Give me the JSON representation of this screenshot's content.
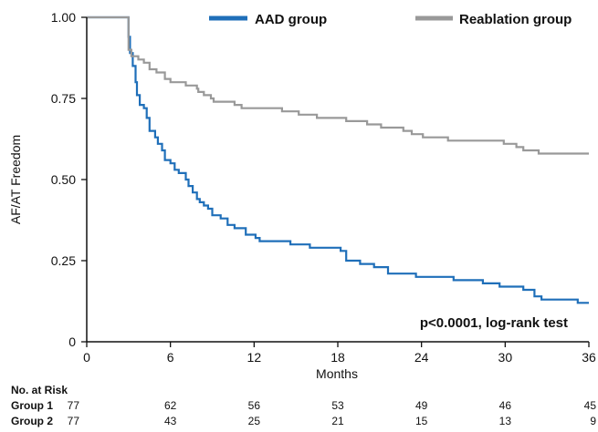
{
  "chart_data": {
    "type": "line",
    "subtype": "kaplan-meier",
    "title": "",
    "xlabel": "Months",
    "ylabel": "AF/AT Freedom",
    "xlim": [
      0,
      36
    ],
    "ylim": [
      0,
      1
    ],
    "xticks": [
      0,
      6,
      12,
      18,
      24,
      30,
      36
    ],
    "yticks": [
      "0",
      "0.25",
      "0.50",
      "0.75",
      "1.00"
    ],
    "yticks_values": [
      0,
      0.25,
      0.5,
      0.75,
      1.0
    ],
    "grid": false,
    "legend_position": "top",
    "annotation": "p<0.0001, log-rank test",
    "series": [
      {
        "name": "AAD group",
        "color": "#1f6fb9",
        "points": [
          [
            0,
            1.0
          ],
          [
            3.0,
            1.0
          ],
          [
            3.0,
            0.94
          ],
          [
            3.1,
            0.89
          ],
          [
            3.3,
            0.85
          ],
          [
            3.5,
            0.8
          ],
          [
            3.6,
            0.76
          ],
          [
            3.8,
            0.73
          ],
          [
            4.1,
            0.72
          ],
          [
            4.3,
            0.69
          ],
          [
            4.5,
            0.65
          ],
          [
            4.9,
            0.63
          ],
          [
            5.1,
            0.61
          ],
          [
            5.4,
            0.59
          ],
          [
            5.6,
            0.56
          ],
          [
            6.0,
            0.55
          ],
          [
            6.3,
            0.53
          ],
          [
            6.6,
            0.52
          ],
          [
            7.1,
            0.5
          ],
          [
            7.3,
            0.48
          ],
          [
            7.6,
            0.46
          ],
          [
            7.9,
            0.44
          ],
          [
            8.1,
            0.43
          ],
          [
            8.4,
            0.42
          ],
          [
            8.7,
            0.41
          ],
          [
            9.0,
            0.39
          ],
          [
            9.6,
            0.38
          ],
          [
            10.1,
            0.36
          ],
          [
            10.6,
            0.35
          ],
          [
            11.4,
            0.33
          ],
          [
            12.1,
            0.32
          ],
          [
            12.4,
            0.31
          ],
          [
            14.6,
            0.3
          ],
          [
            15.1,
            0.3
          ],
          [
            16.0,
            0.29
          ],
          [
            18.2,
            0.28
          ],
          [
            18.6,
            0.25
          ],
          [
            19.6,
            0.24
          ],
          [
            20.6,
            0.23
          ],
          [
            21.6,
            0.21
          ],
          [
            23.6,
            0.2
          ],
          [
            24.8,
            0.2
          ],
          [
            26.3,
            0.19
          ],
          [
            28.4,
            0.18
          ],
          [
            29.6,
            0.17
          ],
          [
            30.7,
            0.17
          ],
          [
            31.3,
            0.16
          ],
          [
            32.1,
            0.14
          ],
          [
            32.6,
            0.13
          ],
          [
            34.7,
            0.13
          ],
          [
            35.2,
            0.12
          ],
          [
            36.0,
            0.12
          ]
        ]
      },
      {
        "name": "Reablation group",
        "color": "#999999",
        "points": [
          [
            0,
            1.0
          ],
          [
            3.0,
            1.0
          ],
          [
            3.0,
            0.9
          ],
          [
            3.2,
            0.88
          ],
          [
            3.7,
            0.87
          ],
          [
            4.1,
            0.86
          ],
          [
            4.5,
            0.84
          ],
          [
            5.0,
            0.83
          ],
          [
            5.3,
            0.83
          ],
          [
            5.6,
            0.81
          ],
          [
            6.0,
            0.8
          ],
          [
            7.1,
            0.79
          ],
          [
            7.9,
            0.78
          ],
          [
            8.0,
            0.77
          ],
          [
            8.4,
            0.76
          ],
          [
            8.9,
            0.75
          ],
          [
            9.1,
            0.74
          ],
          [
            10.6,
            0.73
          ],
          [
            11.1,
            0.72
          ],
          [
            11.7,
            0.72
          ],
          [
            14.0,
            0.71
          ],
          [
            14.5,
            0.71
          ],
          [
            15.2,
            0.7
          ],
          [
            16.5,
            0.69
          ],
          [
            17.1,
            0.69
          ],
          [
            18.6,
            0.68
          ],
          [
            19.2,
            0.68
          ],
          [
            20.1,
            0.67
          ],
          [
            21.1,
            0.66
          ],
          [
            22.7,
            0.65
          ],
          [
            23.3,
            0.64
          ],
          [
            24.1,
            0.63
          ],
          [
            25.9,
            0.62
          ],
          [
            29.1,
            0.62
          ],
          [
            29.9,
            0.61
          ],
          [
            30.8,
            0.6
          ],
          [
            31.3,
            0.59
          ],
          [
            32.4,
            0.58
          ],
          [
            33.8,
            0.58
          ],
          [
            36.0,
            0.58
          ]
        ]
      }
    ],
    "risk_table": {
      "header": "No. at Risk",
      "times": [
        0,
        6,
        12,
        18,
        24,
        30,
        36
      ],
      "rows": [
        {
          "label": "Group 1",
          "values": [
            "77",
            "62",
            "56",
            "53",
            "49",
            "46",
            "45"
          ]
        },
        {
          "label": "Group 2",
          "values": [
            "77",
            "43",
            "25",
            "21",
            "15",
            "13",
            "9"
          ]
        }
      ]
    }
  }
}
